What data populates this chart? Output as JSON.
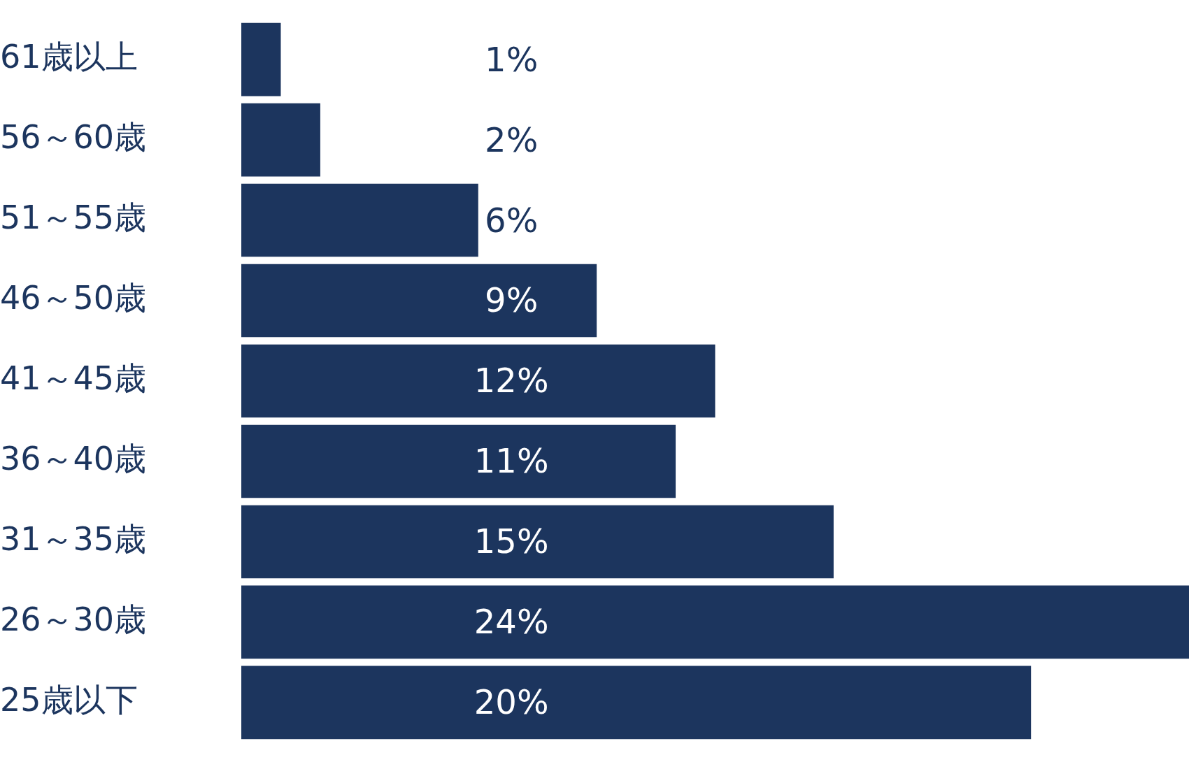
{
  "chart_data": {
    "type": "bar",
    "orientation": "horizontal",
    "categories": [
      "61歳以上",
      "56～60歳",
      "51～55歳",
      "46～50歳",
      "41～45歳",
      "36～40歳",
      "31～35歳",
      "26～30歳",
      "25歳以下"
    ],
    "values": [
      1,
      2,
      6,
      9,
      12,
      11,
      15,
      24,
      20
    ],
    "value_labels": [
      "1%",
      "2%",
      "6%",
      "9%",
      "12%",
      "11%",
      "15%",
      "24%",
      "20%"
    ],
    "color": "#1c355e",
    "grid": false,
    "legend": false
  }
}
